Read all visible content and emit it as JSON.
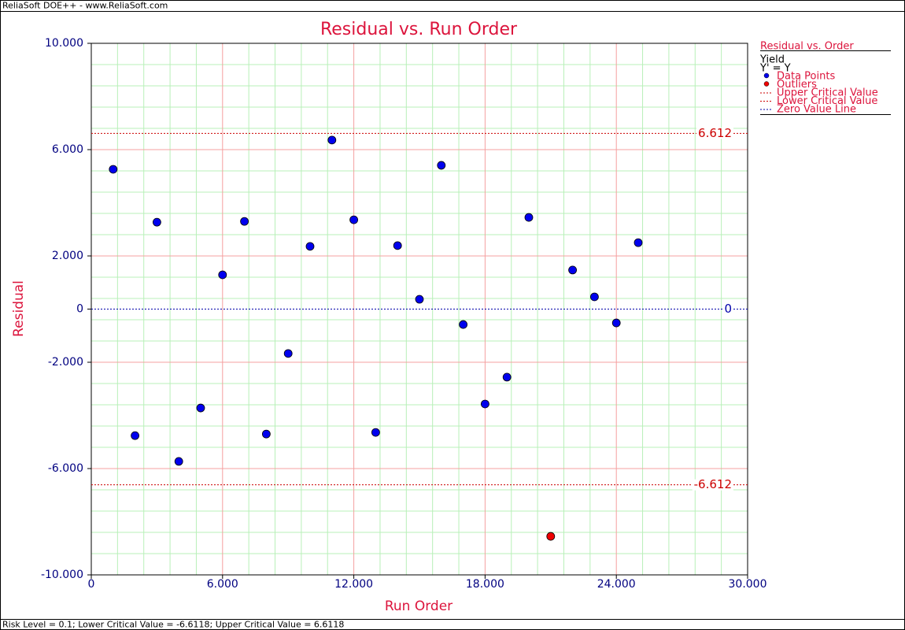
{
  "header": "ReliaSoft DOE++ - www.ReliaSoft.com",
  "footer": "Risk Level = 0.1; Lower Critical Value = -6.6118; Upper Critical Value = 6.6118",
  "chart_data": {
    "type": "scatter",
    "title": "Residual vs. Run Order",
    "x_label": "Run Order",
    "y_label": "Residual",
    "xlim": [
      0,
      30
    ],
    "ylim": [
      -10,
      10
    ],
    "xticks": [
      0,
      {
        "value": 6,
        "label": "6.000"
      },
      {
        "value": 12,
        "label": "12.000"
      },
      {
        "value": 18,
        "label": "18.000"
      },
      {
        "value": 24,
        "label": "24.000"
      },
      {
        "value": 30,
        "label": "30.000"
      }
    ],
    "yticks": [
      {
        "value": -10,
        "label": "-10.000"
      },
      {
        "value": -6,
        "label": "-6.000"
      },
      {
        "value": -2,
        "label": "-2.000"
      },
      0,
      {
        "value": 2,
        "label": "2.000"
      },
      {
        "value": 6,
        "label": "6.000"
      },
      {
        "value": 10,
        "label": "10.000"
      }
    ],
    "grid": true,
    "series": [
      {
        "name": "Data Points",
        "color": "#0000ee",
        "x": [
          1,
          2,
          3,
          4,
          5,
          6,
          7,
          8,
          9,
          10,
          11,
          12,
          13,
          14,
          15,
          16,
          17,
          18,
          19,
          20,
          22,
          23,
          24,
          25
        ],
        "values": [
          5.26,
          -4.76,
          3.27,
          -5.73,
          -3.72,
          1.29,
          3.3,
          -4.7,
          -1.67,
          2.36,
          6.36,
          3.36,
          -4.64,
          2.39,
          0.37,
          5.41,
          -0.58,
          -3.57,
          -2.56,
          3.45,
          1.47,
          0.46,
          -0.52,
          2.5
        ]
      },
      {
        "name": "Outliers",
        "color": "#ee0000",
        "x": [
          21
        ],
        "values": [
          -8.55
        ]
      }
    ],
    "reference_lines": [
      {
        "name": "Upper Critical Value",
        "value": 6.612,
        "color": "#cc0000"
      },
      {
        "name": "Lower Critical Value",
        "value": -6.612,
        "color": "#cc0000"
      },
      {
        "name": "Zero Value Line",
        "value": 0,
        "color": "#0000aa"
      }
    ],
    "legend": {
      "title": "Residual vs. Order",
      "lines": [
        "Yield",
        "Y' = Y"
      ]
    }
  }
}
